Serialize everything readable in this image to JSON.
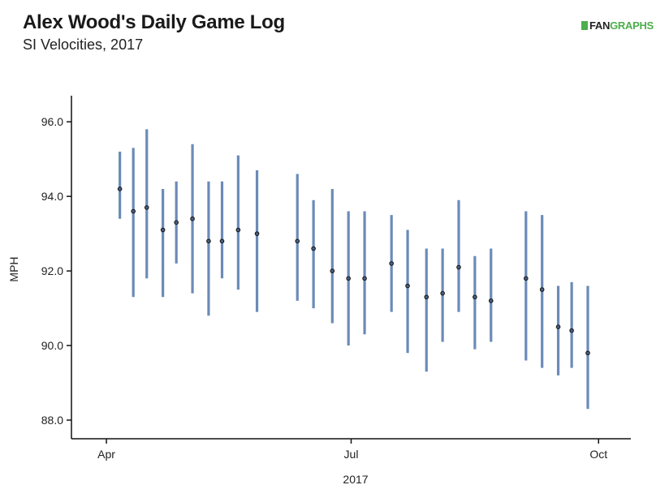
{
  "header": {
    "title": "Alex Wood's Daily Game Log",
    "subtitle": "SI Velocities, 2017",
    "brand_fan": "FAN",
    "brand_graphs": "GRAPHS"
  },
  "colors": {
    "range_bar": "#6b8bb8",
    "point_fill": "#4b5f7e",
    "point_stroke": "#111111",
    "brand_green": "#4cae4c"
  },
  "chart_data": {
    "type": "scatter",
    "title": "Alex Wood's Daily Game Log",
    "subtitle": "SI Velocities, 2017",
    "xlabel": "2017",
    "ylabel": "MPH",
    "ylim": [
      87.5,
      96.7
    ],
    "xlim": [
      "2017-03-19",
      "2017-10-13"
    ],
    "y_ticks": [
      "88.0",
      "90.0",
      "92.0",
      "94.0",
      "96.0"
    ],
    "y_tick_values": [
      88,
      90,
      92,
      94,
      96
    ],
    "x_ticks": [
      {
        "label": "Apr",
        "date": "2017-04-01"
      },
      {
        "label": "Jul",
        "date": "2017-07-01"
      },
      {
        "label": "Oct",
        "date": "2017-10-01"
      }
    ],
    "grid": false,
    "series": [
      {
        "points": [
          {
            "date": "2017-04-06",
            "avg": 94.2,
            "min": 93.4,
            "max": 95.2
          },
          {
            "date": "2017-04-11",
            "avg": 93.6,
            "min": 91.3,
            "max": 95.3
          },
          {
            "date": "2017-04-16",
            "avg": 93.7,
            "min": 91.8,
            "max": 95.8
          },
          {
            "date": "2017-04-22",
            "avg": 93.1,
            "min": 91.3,
            "max": 94.2
          },
          {
            "date": "2017-04-27",
            "avg": 93.3,
            "min": 92.2,
            "max": 94.4
          },
          {
            "date": "2017-05-03",
            "avg": 93.4,
            "min": 91.4,
            "max": 95.4
          },
          {
            "date": "2017-05-09",
            "avg": 92.8,
            "min": 90.8,
            "max": 94.4
          },
          {
            "date": "2017-05-14",
            "avg": 92.8,
            "min": 91.8,
            "max": 94.4
          },
          {
            "date": "2017-05-20",
            "avg": 93.1,
            "min": 91.5,
            "max": 95.1
          },
          {
            "date": "2017-05-27",
            "avg": 93.0,
            "min": 90.9,
            "max": 94.7
          },
          {
            "date": "2017-06-11",
            "avg": 92.8,
            "min": 91.2,
            "max": 94.6
          },
          {
            "date": "2017-06-17",
            "avg": 92.6,
            "min": 91.0,
            "max": 93.9
          },
          {
            "date": "2017-06-24",
            "avg": 92.0,
            "min": 90.6,
            "max": 94.2
          },
          {
            "date": "2017-06-30",
            "avg": 91.8,
            "min": 90.0,
            "max": 93.6
          },
          {
            "date": "2017-07-06",
            "avg": 91.8,
            "min": 90.3,
            "max": 93.6
          },
          {
            "date": "2017-07-16",
            "avg": 92.2,
            "min": 90.9,
            "max": 93.5
          },
          {
            "date": "2017-07-22",
            "avg": 91.6,
            "min": 89.8,
            "max": 93.1
          },
          {
            "date": "2017-07-29",
            "avg": 91.3,
            "min": 89.3,
            "max": 92.6
          },
          {
            "date": "2017-08-04",
            "avg": 91.4,
            "min": 90.1,
            "max": 92.6
          },
          {
            "date": "2017-08-10",
            "avg": 92.1,
            "min": 90.9,
            "max": 93.9
          },
          {
            "date": "2017-08-16",
            "avg": 91.3,
            "min": 89.9,
            "max": 92.4
          },
          {
            "date": "2017-08-22",
            "avg": 91.2,
            "min": 90.1,
            "max": 92.6
          },
          {
            "date": "2017-09-04",
            "avg": 91.8,
            "min": 89.6,
            "max": 93.6
          },
          {
            "date": "2017-09-10",
            "avg": 91.5,
            "min": 89.4,
            "max": 93.5
          },
          {
            "date": "2017-09-16",
            "avg": 90.5,
            "min": 89.2,
            "max": 91.6
          },
          {
            "date": "2017-09-21",
            "avg": 90.4,
            "min": 89.4,
            "max": 91.7
          },
          {
            "date": "2017-09-27",
            "avg": 89.8,
            "min": 88.3,
            "max": 91.6
          }
        ]
      }
    ]
  }
}
